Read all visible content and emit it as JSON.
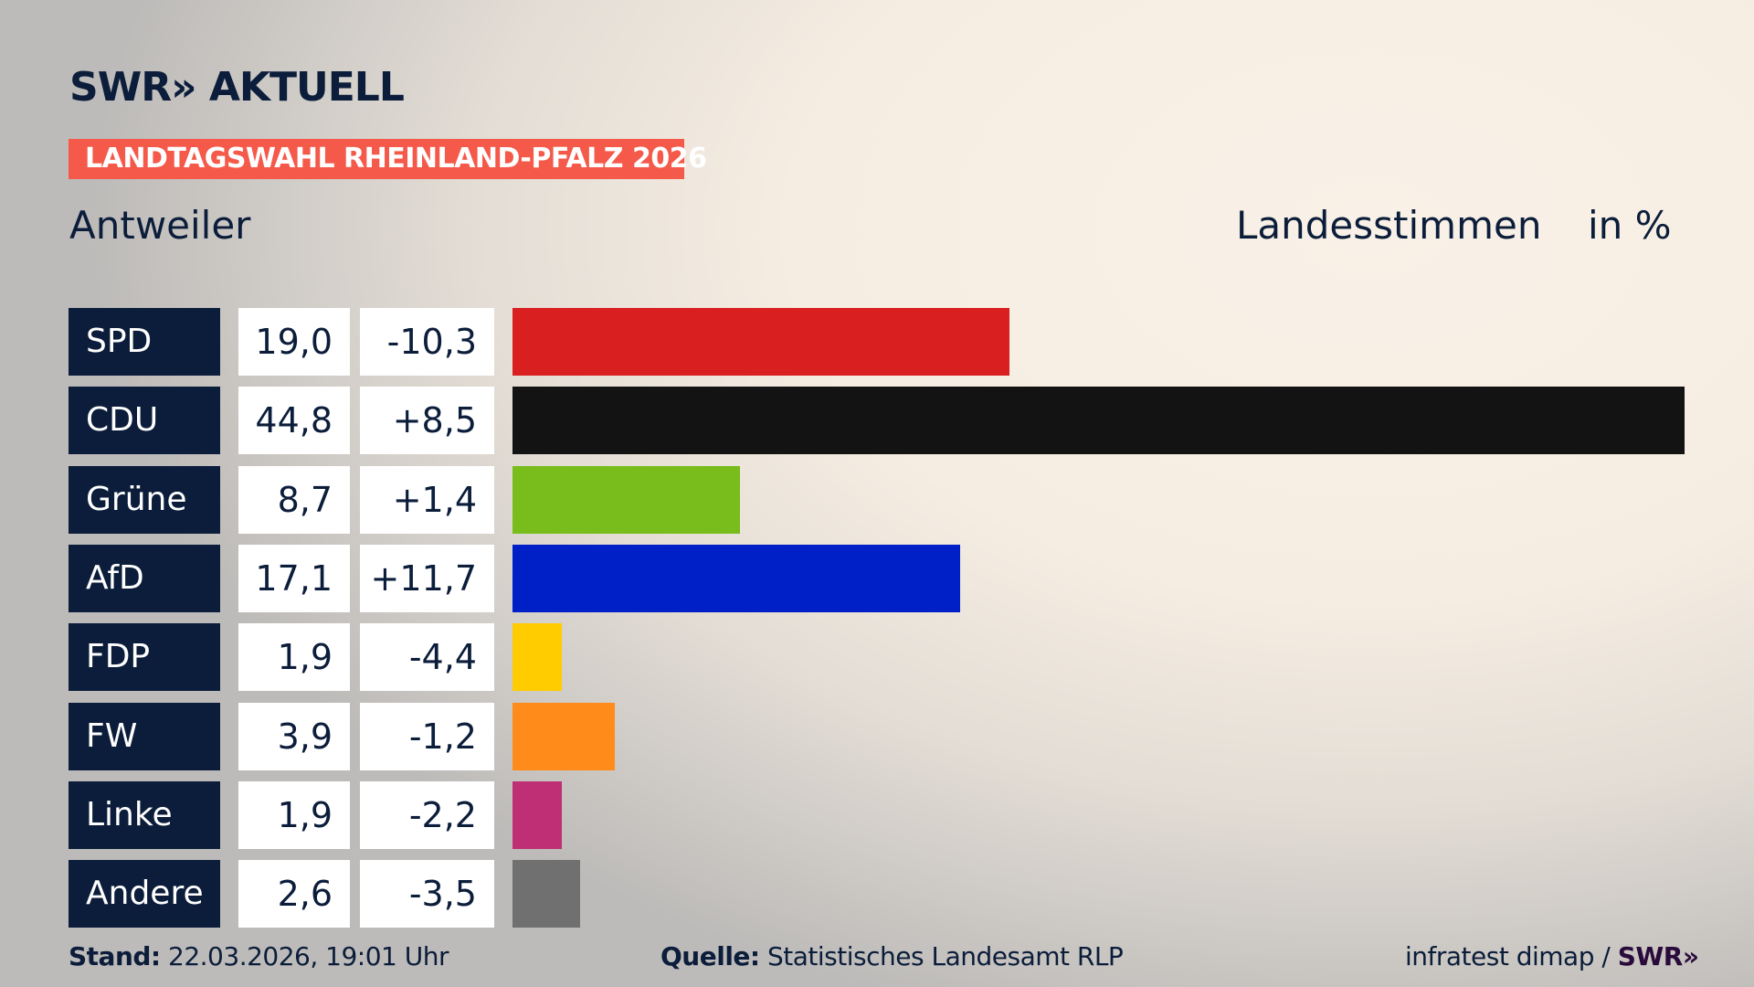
{
  "header": {
    "logo": "SWR» AKTUELL",
    "banner": "LANDTAGSWAHL RHEINLAND-PFALZ 2026",
    "region": "Antweiler",
    "measure": "Landesstimmen",
    "unit": "in %"
  },
  "chart_data": {
    "type": "bar",
    "orientation": "horizontal",
    "categories": [
      "SPD",
      "CDU",
      "Grüne",
      "AfD",
      "FDP",
      "FW",
      "Linke",
      "Andere"
    ],
    "values": [
      19.0,
      44.8,
      8.7,
      17.1,
      1.9,
      3.9,
      1.9,
      2.6
    ],
    "value_labels": [
      "19,0",
      "44,8",
      "8,7",
      "17,1",
      "1,9",
      "3,9",
      "1,9",
      "2,6"
    ],
    "change_labels": [
      "-10,3",
      "+8,5",
      "+1,4",
      "+11,7",
      "-4,4",
      "-1,2",
      "-2,2",
      "-3,5"
    ],
    "changes": [
      -10.3,
      8.5,
      1.4,
      11.7,
      -4.4,
      -1.2,
      -2.2,
      -3.5
    ],
    "colors": [
      "#d91f20",
      "#131313",
      "#78bd1c",
      "#0020c7",
      "#ffcc00",
      "#ff8c1a",
      "#bf2f75",
      "#707070"
    ],
    "xlim": [
      0,
      44.8
    ]
  },
  "footer": {
    "stand_label": "Stand:",
    "stand_value": "22.03.2026, 19:01 Uhr",
    "source_label": "Quelle:",
    "source_value": "Statistisches Landesamt RLP",
    "credit": "infratest dimap /",
    "credit_logo": "SWR»"
  }
}
